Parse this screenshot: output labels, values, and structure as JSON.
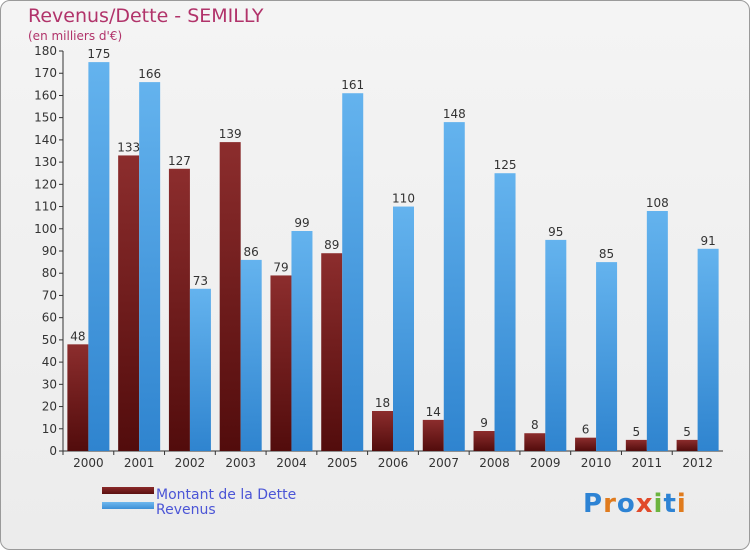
{
  "title": "Revenus/Dette - SEMILLY",
  "subtitle": "(en milliers d'€)",
  "logo_text": "Proxiti",
  "colors": {
    "debt": "#6e1c1c",
    "revenue": "#4da3e6",
    "title": "#b1336a",
    "legend_text": "#4b55d6"
  },
  "chart_data": {
    "type": "bar",
    "categories": [
      "2000",
      "2001",
      "2002",
      "2003",
      "2004",
      "2005",
      "2006",
      "2007",
      "2008",
      "2009",
      "2010",
      "2011",
      "2012"
    ],
    "series": [
      {
        "name": "Montant de la Dette",
        "values": [
          48,
          133,
          127,
          139,
          79,
          89,
          18,
          14,
          9,
          8,
          6,
          5,
          5
        ]
      },
      {
        "name": "Revenus",
        "values": [
          175,
          166,
          73,
          86,
          99,
          161,
          110,
          148,
          125,
          95,
          85,
          108,
          91
        ]
      }
    ],
    "ylim": [
      0,
      180
    ],
    "yticks": [
      0,
      10,
      20,
      30,
      40,
      50,
      60,
      70,
      80,
      90,
      100,
      110,
      120,
      130,
      140,
      150,
      160,
      170,
      180
    ],
    "grid": false,
    "legend_position": "bottom-left"
  }
}
